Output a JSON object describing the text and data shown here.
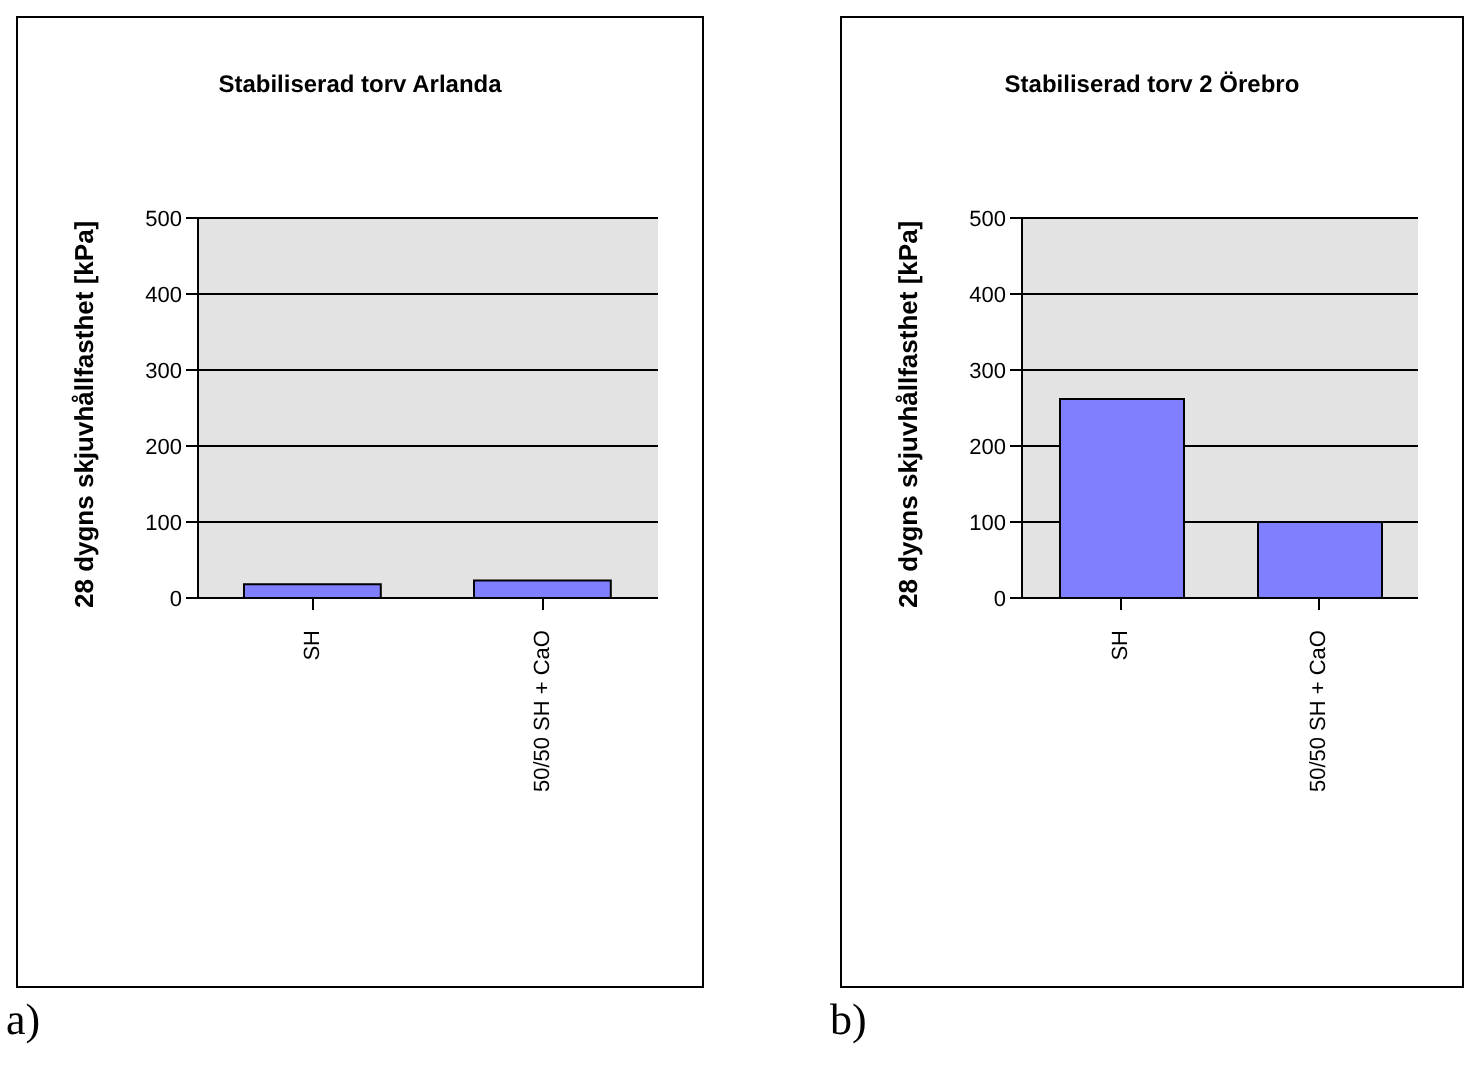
{
  "chart_data": [
    {
      "type": "bar",
      "title": "Stabiliserad torv Arlanda",
      "ylabel": "28 dygns skjuvhållfasthet [kPa]",
      "categories": [
        "SH",
        "50/50 SH + CaO"
      ],
      "values": [
        18,
        23
      ],
      "color": "#8080ff",
      "ylim": [
        0,
        500
      ],
      "yticks": [
        0,
        100,
        200,
        300,
        400,
        500
      ],
      "grid": "y",
      "annotations": [
        "a)"
      ]
    },
    {
      "type": "bar",
      "title": "Stabiliserad torv 2 Örebro",
      "ylabel": "28 dygns skjuvhållfasthet [kPa]",
      "categories": [
        "SH",
        "50/50 SH + CaO"
      ],
      "values": [
        262,
        100
      ],
      "color": "#8080ff",
      "ylim": [
        0,
        500
      ],
      "yticks": [
        0,
        100,
        200,
        300,
        400,
        500
      ],
      "grid": "y",
      "annotations": [
        "b)"
      ]
    }
  ]
}
